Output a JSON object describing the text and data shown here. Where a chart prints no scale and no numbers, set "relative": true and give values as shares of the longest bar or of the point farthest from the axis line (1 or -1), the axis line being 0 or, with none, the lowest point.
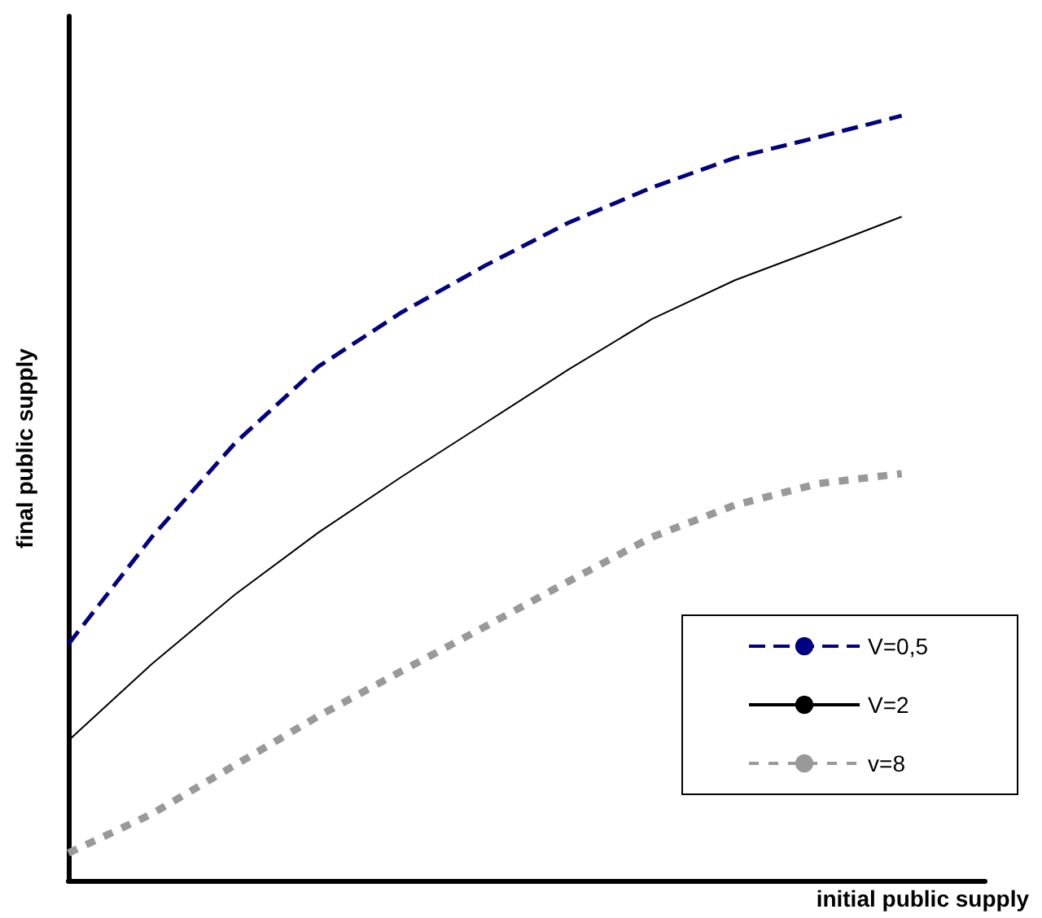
{
  "chart_data": {
    "type": "line",
    "relative": true,
    "xlabel": "initial public supply",
    "ylabel": "final public supply",
    "categories": [
      null,
      null,
      null,
      null,
      null,
      null,
      null,
      null,
      null,
      null,
      null,
      null
    ],
    "series": [
      {
        "name": "V=0,5",
        "color": "#000080",
        "line_style": "dashed",
        "values": [
          0.309,
          0.449,
          0.572,
          0.672,
          0.743,
          0.804,
          0.86,
          0.906,
          0.945,
          0.972,
          1,
          null
        ]
      },
      {
        "name": "V=2",
        "color": "#000000",
        "line_style": "solid",
        "values": [
          0.183,
          0.283,
          0.374,
          0.455,
          0.528,
          0.598,
          0.668,
          0.734,
          0.785,
          0.826,
          0.868,
          null
        ]
      },
      {
        "name": "v=8",
        "color": "#999999",
        "line_style": "dotted",
        "values": [
          0.036,
          0.087,
          0.151,
          0.215,
          0.274,
          0.332,
          0.391,
          0.449,
          0.491,
          0.519,
          0.532,
          null
        ]
      }
    ],
    "legend": "bottom right",
    "grid": false,
    "marker": "none"
  }
}
